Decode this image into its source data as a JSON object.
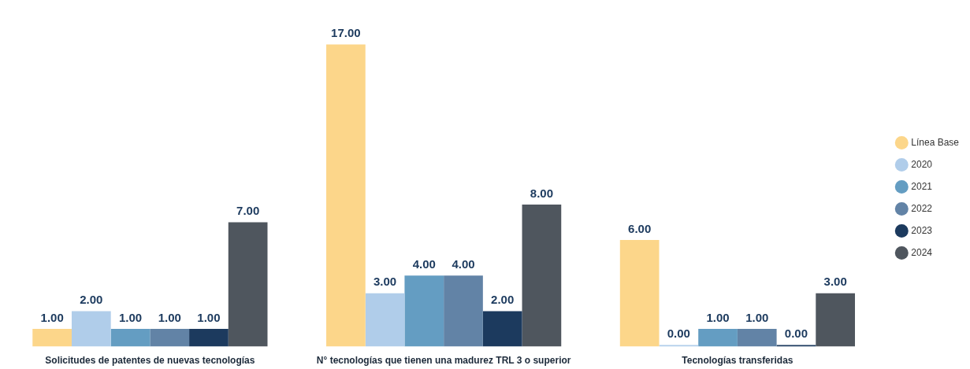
{
  "chart_data": {
    "type": "bar",
    "categories": [
      "Solicitudes de patentes de nuevas tecnologías",
      "N° tecnologías que tienen una madurez TRL 3 o superior",
      "Tecnologías transferidas"
    ],
    "legend": "right",
    "data_labels": true,
    "series": [
      {
        "name": "Línea Base",
        "color": "#fcd68a",
        "values": [
          1,
          17,
          6
        ],
        "value_labels": [
          "1.00",
          "17.00",
          "6.00"
        ]
      },
      {
        "name": "2020",
        "color": "#b0cdea",
        "values": [
          2,
          3,
          0
        ],
        "value_labels": [
          "2.00",
          "3.00",
          "0.00"
        ]
      },
      {
        "name": "2021",
        "color": "#649dc2",
        "values": [
          1,
          4,
          1
        ],
        "value_labels": [
          "1.00",
          "4.00",
          "1.00"
        ]
      },
      {
        "name": "2022",
        "color": "#6283a6",
        "values": [
          1,
          4,
          1
        ],
        "value_labels": [
          "1.00",
          "4.00",
          "1.00"
        ]
      },
      {
        "name": "2023",
        "color": "#1c3a5e",
        "values": [
          1,
          2,
          0
        ],
        "value_labels": [
          "1.00",
          "2.00",
          "0.00"
        ]
      },
      {
        "name": "2024",
        "color": "#4f565e",
        "values": [
          7,
          8,
          3
        ],
        "value_labels": [
          "7.00",
          "8.00",
          "3.00"
        ]
      }
    ]
  }
}
